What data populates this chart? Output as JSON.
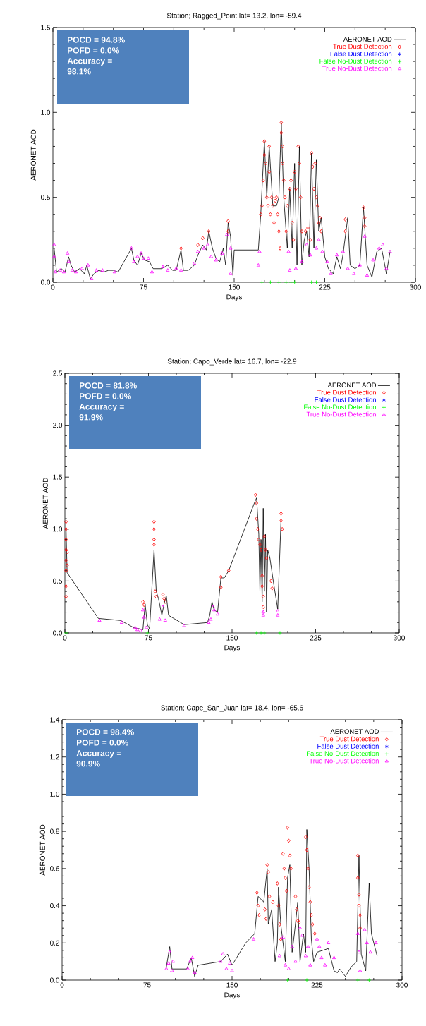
{
  "chart_data": [
    {
      "type": "line",
      "title": "Station; Ragged_Point lat=  13.2, lon=  -59.4",
      "xlabel": "Days",
      "ylabel": "AERONET AOD",
      "legend": "top right",
      "xlim": [
        0,
        300
      ],
      "xticks": [
        0,
        75,
        150,
        225,
        300
      ],
      "ylim": [
        0,
        1.5
      ],
      "yticks": [
        {
          "value": 0,
          "label": "0.0"
        },
        {
          "value": 0.5,
          "label": "0.5"
        },
        {
          "value": 1.0,
          "label": "1.0"
        },
        {
          "value": 1.5,
          "label": "1.5"
        }
      ],
      "annotations": [
        "POCD = 94.8%",
        "POFD = 0.0%",
        "Accuracy = 98.1%"
      ],
      "series": [
        {
          "name": "AERONET AOD",
          "type": "line",
          "color": "#000000",
          "marker": "none",
          "line_style": "solid",
          "x": [
            1,
            3,
            7,
            10,
            13,
            15,
            18,
            22,
            26,
            28,
            31,
            34,
            38,
            42,
            46,
            50,
            54,
            65,
            67,
            70,
            73,
            76,
            80,
            83,
            90,
            95,
            99,
            102,
            106,
            108,
            112,
            117,
            120,
            124,
            127,
            129,
            132,
            135,
            138,
            141,
            143,
            145,
            147,
            149,
            150,
            165,
            170,
            172,
            175,
            177,
            179,
            182,
            185,
            187,
            189,
            191,
            194,
            196,
            198,
            200,
            202,
            204,
            206,
            208,
            210,
            212,
            214,
            216,
            218,
            220,
            222,
            225,
            228,
            232,
            235,
            238,
            240,
            244,
            246,
            250,
            254,
            257,
            260,
            264,
            268,
            272,
            276,
            279
          ],
          "values": [
            0.2,
            0.06,
            0.08,
            0.06,
            0.15,
            0.1,
            0.06,
            0.08,
            0.05,
            0.1,
            0.02,
            0.05,
            0.07,
            0.06,
            0.07,
            0.07,
            0.06,
            0.2,
            0.13,
            0.1,
            0.17,
            0.13,
            0.12,
            0.08,
            0.08,
            0.1,
            0.07,
            0.07,
            0.19,
            0.07,
            0.07,
            0.1,
            0.16,
            0.22,
            0.19,
            0.3,
            0.2,
            0.14,
            0.12,
            0.2,
            0.1,
            0.35,
            0.27,
            0.04,
            0.19,
            0.19,
            0.19,
            0.4,
            0.83,
            0.5,
            0.8,
            0.45,
            0.45,
            0.5,
            0.94,
            0.5,
            0.2,
            0.55,
            0.2,
            0.7,
            0.1,
            0.8,
            0.1,
            0.25,
            0.3,
            0.15,
            0.76,
            0.2,
            0.72,
            0.3,
            0.38,
            0.15,
            0.08,
            0.05,
            0.15,
            0.08,
            0.16,
            0.38,
            0.1,
            0.08,
            0.1,
            0.44,
            0.1,
            0.03,
            0.18,
            0.2,
            0.05,
            0.18
          ]
        },
        {
          "name": "True Dust Detection",
          "type": "scatter",
          "color": "#ff0000",
          "marker": "diamond",
          "x": [
            106,
            120,
            124,
            129,
            145,
            145,
            172,
            173,
            174,
            175,
            175,
            176,
            177,
            178,
            179,
            179,
            180,
            181,
            182,
            183,
            184,
            185,
            186,
            187,
            188,
            189,
            189,
            190,
            190,
            191,
            192,
            193,
            194,
            196,
            197,
            198,
            199,
            200,
            201,
            203,
            204,
            205,
            206,
            209,
            211,
            213,
            214,
            215,
            216,
            217,
            218,
            219,
            220,
            221,
            222,
            242,
            242,
            257,
            258,
            258
          ],
          "values": [
            0.2,
            0.22,
            0.26,
            0.3,
            0.36,
            0.3,
            0.4,
            0.45,
            0.6,
            0.75,
            0.83,
            0.7,
            0.5,
            0.45,
            0.8,
            0.65,
            0.4,
            0.5,
            0.45,
            0.35,
            0.48,
            0.5,
            0.4,
            0.3,
            0.2,
            0.94,
            0.88,
            0.8,
            0.7,
            0.6,
            0.5,
            0.3,
            0.45,
            0.55,
            0.6,
            0.35,
            0.25,
            0.65,
            0.55,
            0.8,
            0.7,
            0.5,
            0.3,
            0.3,
            0.32,
            0.25,
            0.76,
            0.68,
            0.55,
            0.7,
            0.5,
            0.45,
            0.35,
            0.38,
            0.3,
            0.37,
            0.3,
            0.44,
            0.38,
            0.33
          ]
        },
        {
          "name": "False Dust Detection",
          "type": "scatter",
          "color": "#0000ff",
          "marker": "star"
        },
        {
          "name": "False No-Dust Detection",
          "type": "scatter",
          "color": "#00ff00",
          "marker": "cross",
          "x": [
            173,
            180,
            187,
            193,
            197,
            200,
            214,
            218
          ],
          "values": [
            0,
            0,
            0,
            0,
            0,
            0,
            0,
            0
          ]
        },
        {
          "name": "True No-Dust Detection",
          "type": "scatter",
          "color": "#ff00ff",
          "marker": "triangle",
          "x": [
            1,
            1,
            2,
            6,
            9,
            12,
            13,
            16,
            19,
            24,
            29,
            32,
            36,
            41,
            51,
            65,
            67,
            70,
            73,
            75,
            79,
            82,
            91,
            95,
            102,
            106,
            117,
            120,
            125,
            128,
            131,
            135,
            140,
            144,
            147,
            147,
            170,
            171,
            195,
            196,
            201,
            206,
            210,
            213,
            218,
            220,
            223,
            227,
            230,
            235,
            240,
            244,
            249,
            254,
            258,
            260,
            265,
            270,
            273,
            276,
            279
          ],
          "values": [
            0.22,
            0.15,
            0.06,
            0.07,
            0.06,
            0.17,
            0.12,
            0.07,
            0.06,
            0.08,
            0.1,
            0.02,
            0.07,
            0.07,
            0.06,
            0.2,
            0.12,
            0.15,
            0.17,
            0.14,
            0.14,
            0.06,
            0.09,
            0.07,
            0.08,
            0.07,
            0.11,
            0.18,
            0.2,
            0.22,
            0.15,
            0.13,
            0.17,
            0.28,
            0.05,
            0.2,
            0.1,
            0.18,
            0.18,
            0.07,
            0.08,
            0.12,
            0.22,
            0.16,
            0.2,
            0.25,
            0.18,
            0.12,
            0.05,
            0.16,
            0.18,
            0.08,
            0.05,
            0.1,
            0.27,
            0.04,
            0.13,
            0.2,
            0.22,
            0.08,
            0.18
          ]
        }
      ]
    },
    {
      "type": "line",
      "title": "Station; Capo_Verde lat=  16.7, lon=  -22.9",
      "xlabel": "Days",
      "ylabel": "AERONET AOD",
      "legend": "top right",
      "xlim": [
        0,
        300
      ],
      "xticks": [
        0,
        75,
        150,
        225,
        300
      ],
      "ylim": [
        0,
        2.5
      ],
      "yticks": [
        {
          "value": 0,
          "label": "0.0"
        },
        {
          "value": 0.5,
          "label": "0.5"
        },
        {
          "value": 1.0,
          "label": "1.0"
        },
        {
          "value": 1.5,
          "label": "1.5"
        },
        {
          "value": 2.0,
          "label": "2.0"
        },
        {
          "value": 2.5,
          "label": "2.5"
        }
      ],
      "annotations": [
        "POCD = 81.8%",
        "POFD = 0.0%",
        "Accuracy = 91.9%"
      ],
      "series": [
        {
          "name": "AERONET AOD",
          "type": "line",
          "color": "#000000",
          "marker": "none",
          "line_style": "solid",
          "x": [
            1,
            1,
            2,
            30,
            50,
            62,
            67,
            70,
            72,
            74,
            76,
            80,
            82,
            84,
            87,
            89,
            91,
            93,
            107,
            128,
            130,
            132,
            134,
            137,
            140,
            143,
            147,
            170,
            172,
            174,
            175,
            176,
            177,
            178,
            179,
            180,
            181,
            182,
            184,
            187,
            191,
            194
          ],
          "values": [
            0.58,
            1.0,
            0.58,
            0.14,
            0.12,
            0.05,
            0.04,
            0.03,
            0.28,
            0.08,
            0.04,
            0.8,
            0.4,
            0.33,
            0.17,
            0.28,
            0.36,
            0.17,
            0.08,
            0.1,
            0.17,
            0.3,
            0.22,
            0.2,
            0.53,
            0.53,
            0.6,
            1.25,
            1.3,
            0.95,
            0.4,
            0.9,
            0.3,
            1.2,
            0.4,
            0.95,
            0.2,
            0.8,
            0.72,
            0.5,
            0.23,
            1.1
          ]
        },
        {
          "name": "True Dust Detection",
          "type": "scatter",
          "color": "#ff0000",
          "marker": "diamond",
          "x": [
            1,
            1,
            1,
            1,
            1,
            1,
            1,
            1,
            2,
            2,
            70,
            71,
            80,
            80,
            80,
            80,
            81,
            82,
            88,
            89,
            90,
            140,
            140,
            147,
            171,
            172,
            172,
            173,
            174,
            175,
            176,
            177,
            177,
            178,
            178,
            179,
            180,
            181,
            185,
            186,
            194,
            194,
            195
          ],
          "values": [
            0.35,
            0.45,
            0.6,
            0.7,
            0.8,
            0.9,
            1.0,
            1.07,
            0.65,
            0.78,
            0.3,
            0.27,
            1.07,
            1.0,
            0.9,
            0.85,
            0.4,
            0.35,
            0.37,
            0.33,
            0.3,
            0.54,
            0.44,
            0.6,
            1.33,
            1.25,
            1.1,
            1.0,
            0.9,
            0.85,
            0.8,
            0.55,
            0.45,
            0.35,
            0.25,
            0.93,
            0.8,
            0.72,
            0.5,
            0.43,
            1.15,
            1.08,
            1.0
          ]
        },
        {
          "name": "False Dust Detection",
          "type": "scatter",
          "color": "#0000ff",
          "marker": "star"
        },
        {
          "name": "False No-Dust Detection",
          "type": "scatter",
          "color": "#00ff00",
          "marker": "cross",
          "x": [
            1,
            74,
            172,
            176,
            179,
            193
          ],
          "values": [
            0,
            0,
            0,
            0,
            0,
            0
          ]
        },
        {
          "name": "True No-Dust Detection",
          "type": "scatter",
          "color": "#ff00ff",
          "marker": "triangle",
          "x": [
            31,
            51,
            63,
            65,
            68,
            70,
            71,
            73,
            85,
            88,
            90,
            107,
            129,
            131,
            133,
            134,
            137,
            178,
            178,
            191,
            191
          ],
          "values": [
            0.12,
            0.1,
            0.05,
            0.03,
            0.02,
            0.22,
            0.15,
            0.05,
            0.13,
            0.25,
            0.12,
            0.07,
            0.1,
            0.13,
            0.25,
            0.22,
            0.18,
            0.2,
            0.17,
            0.21,
            0.17
          ]
        }
      ]
    },
    {
      "type": "line",
      "title": "Station; Cape_San_Juan lat=  18.4, lon=  -65.6",
      "xlabel": "Days",
      "ylabel": "AERONET AOD",
      "legend": "top right",
      "xlim": [
        0,
        300
      ],
      "xticks": [
        0,
        75,
        150,
        225,
        300
      ],
      "ylim": [
        0,
        1.4
      ],
      "yticks": [
        {
          "value": 0,
          "label": "0.0"
        },
        {
          "value": 0.2,
          "label": "0.2"
        },
        {
          "value": 0.4,
          "label": "0.4"
        },
        {
          "value": 0.6,
          "label": "0.6"
        },
        {
          "value": 0.8,
          "label": "0.8"
        },
        {
          "value": 1.0,
          "label": "1.0"
        },
        {
          "value": 1.2,
          "label": "1.2"
        },
        {
          "value": 1.4,
          "label": "1.4"
        }
      ],
      "annotations": [
        "POCD = 98.4%",
        "POFD = 0.0%",
        "Accuracy = 90.9%"
      ],
      "series": [
        {
          "name": "AERONET AOD",
          "type": "line",
          "color": "#000000",
          "marker": "none",
          "line_style": "solid",
          "x": [
            92,
            95,
            97,
            110,
            114,
            117,
            120,
            140,
            146,
            150,
            162,
            170,
            173,
            178,
            181,
            182,
            185,
            188,
            190,
            191,
            193,
            195,
            197,
            199,
            201,
            203,
            205,
            208,
            210,
            213,
            215,
            216,
            218,
            220,
            222,
            225,
            235,
            240,
            243,
            245,
            250,
            255,
            260,
            262,
            264,
            268,
            271,
            273,
            278
          ],
          "values": [
            0.07,
            0.18,
            0.06,
            0.06,
            0.12,
            0.02,
            0.08,
            0.1,
            0.14,
            0.08,
            0.2,
            0.25,
            0.45,
            0.42,
            0.6,
            0.3,
            0.38,
            0.1,
            0.2,
            0.5,
            0.3,
            0.2,
            0.1,
            0.55,
            0.62,
            0.15,
            0.25,
            0.42,
            0.1,
            0.25,
            0.15,
            0.81,
            0.6,
            0.22,
            0.1,
            0.15,
            0.17,
            0.05,
            0.04,
            0.06,
            0.02,
            0.07,
            0.1,
            0.67,
            0.14,
            0.05,
            0.52,
            0.25,
            0.13
          ]
        },
        {
          "name": "True Dust Detection",
          "type": "scatter",
          "color": "#ff0000",
          "marker": "diamond",
          "x": [
            172,
            173,
            174,
            179,
            180,
            181,
            182,
            183,
            186,
            190,
            191,
            192,
            193,
            195,
            196,
            197,
            198,
            199,
            200,
            201,
            202,
            206,
            207,
            208,
            209,
            215,
            216,
            217,
            218,
            219,
            220,
            221,
            223,
            261,
            261,
            262,
            262,
            263,
            263
          ],
          "values": [
            0.47,
            0.4,
            0.35,
            0.38,
            0.33,
            0.62,
            0.58,
            0.45,
            0.42,
            0.52,
            0.4,
            0.3,
            0.22,
            0.68,
            0.6,
            0.55,
            0.48,
            0.82,
            0.75,
            0.67,
            0.6,
            0.45,
            0.38,
            0.32,
            0.31,
            0.77,
            0.7,
            0.6,
            0.5,
            0.42,
            0.35,
            0.3,
            0.25,
            0.67,
            0.55,
            0.46,
            0.4,
            0.35,
            0.28
          ]
        },
        {
          "name": "False Dust Detection",
          "type": "scatter",
          "color": "#0000ff",
          "marker": "star"
        },
        {
          "name": "False No-Dust Detection",
          "type": "scatter",
          "color": "#00ff00",
          "marker": "cross",
          "x": [
            199,
            216,
            261,
            271
          ],
          "values": [
            0,
            0,
            0,
            0
          ]
        },
        {
          "name": "True No-Dust Detection",
          "type": "scatter",
          "color": "#ff00ff",
          "marker": "triangle",
          "x": [
            92,
            94,
            95,
            97,
            98,
            111,
            113,
            115,
            117,
            140,
            142,
            145,
            148,
            150,
            169,
            192,
            195,
            197,
            200,
            203,
            206,
            210,
            212,
            215,
            217,
            219,
            225,
            227,
            229,
            232,
            235,
            240,
            261,
            262,
            263,
            267,
            269,
            272,
            277
          ],
          "values": [
            0.06,
            0.09,
            0.15,
            0.05,
            0.1,
            0.06,
            0.1,
            0.12,
            0.04,
            0.1,
            0.14,
            0.06,
            0.09,
            0.05,
            0.22,
            0.13,
            0.23,
            0.08,
            0.06,
            0.18,
            0.1,
            0.28,
            0.24,
            0.13,
            0.18,
            0.08,
            0.22,
            0.18,
            0.12,
            0.08,
            0.2,
            0.12,
            0.25,
            0.15,
            0.05,
            0.27,
            0.2,
            0.15,
            0.2
          ]
        }
      ]
    }
  ]
}
